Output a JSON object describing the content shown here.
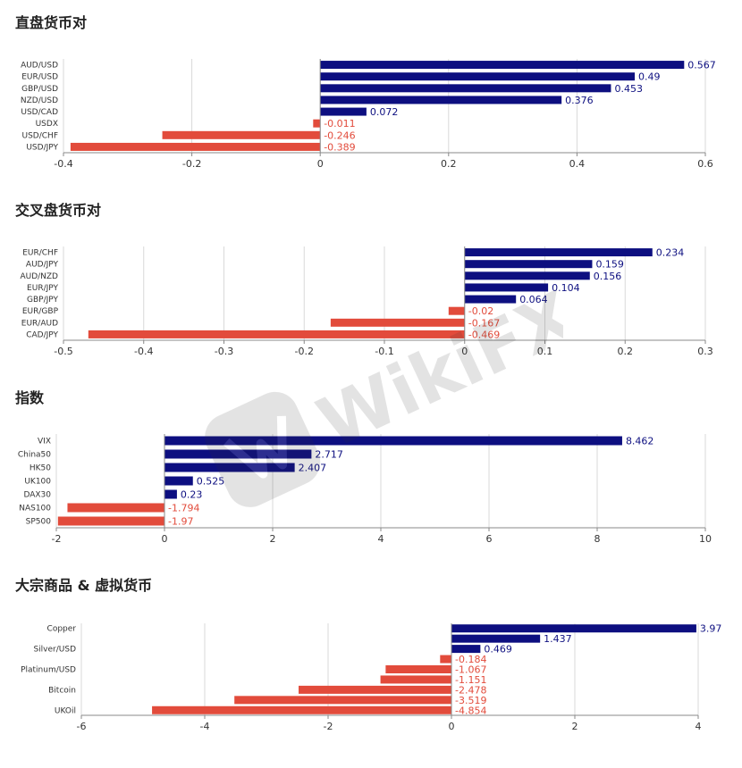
{
  "colors": {
    "positive": "#0d0f80",
    "negative": "#e24b3b",
    "grid": "#d9d9d9",
    "axis": "#888888"
  },
  "watermark": {
    "text": "WikiFX",
    "icon": "wikifx-logo-icon"
  },
  "chart_data": [
    {
      "type": "bar",
      "orientation": "horizontal",
      "title": "直盘货币对",
      "categories": [
        "AUD/USD",
        "EUR/USD",
        "GBP/USD",
        "NZD/USD",
        "USD/CAD",
        "USDX",
        "USD/CHF",
        "USD/JPY"
      ],
      "values": [
        0.567,
        0.49,
        0.453,
        0.376,
        0.072,
        -0.011,
        -0.246,
        -0.389
      ],
      "value_labels": [
        "0.567",
        "0.49",
        "0.453",
        "0.376",
        "0.072",
        "-0.011",
        "-0.246",
        "-0.389"
      ],
      "xlim": [
        -0.4,
        0.6
      ],
      "xticks": [
        -0.4,
        -0.2,
        0,
        0.2,
        0.4,
        0.6
      ],
      "xtick_labels": [
        "-0.4",
        "-0.2",
        "0",
        "0.2",
        "0.4",
        "0.6"
      ],
      "grid": true
    },
    {
      "type": "bar",
      "orientation": "horizontal",
      "title": "交叉盘货币对",
      "categories": [
        "EUR/CHF",
        "AUD/JPY",
        "AUD/NZD",
        "EUR/JPY",
        "GBP/JPY",
        "EUR/GBP",
        "EUR/AUD",
        "CAD/JPY"
      ],
      "values": [
        0.234,
        0.159,
        0.156,
        0.104,
        0.064,
        -0.02,
        -0.167,
        -0.469
      ],
      "value_labels": [
        "0.234",
        "0.159",
        "0.156",
        "0.104",
        "0.064",
        "-0.02",
        "-0.167",
        "-0.469"
      ],
      "xlim": [
        -0.5,
        0.3
      ],
      "xticks": [
        -0.5,
        -0.4,
        -0.3,
        -0.2,
        -0.1,
        0,
        0.1,
        0.2,
        0.3
      ],
      "xtick_labels": [
        "-0.5",
        "-0.4",
        "-0.3",
        "-0.2",
        "-0.1",
        "0",
        "0.1",
        "0.2",
        "0.3"
      ],
      "grid": true
    },
    {
      "type": "bar",
      "orientation": "horizontal",
      "title": "指数",
      "categories": [
        "VIX",
        "China50",
        "HK50",
        "UK100",
        "DAX30",
        "NAS100",
        "SP500"
      ],
      "values": [
        8.462,
        2.717,
        2.407,
        0.525,
        0.23,
        -1.794,
        -1.97
      ],
      "value_labels": [
        "8.462",
        "2.717",
        "2.407",
        "0.525",
        "0.23",
        "-1.794",
        "-1.97"
      ],
      "xlim": [
        -2,
        10
      ],
      "xticks": [
        -2,
        0,
        2,
        4,
        6,
        8,
        10
      ],
      "xtick_labels": [
        "-2",
        "0",
        "2",
        "4",
        "6",
        "8",
        "10"
      ],
      "grid": true
    },
    {
      "type": "bar",
      "orientation": "horizontal",
      "title": "大宗商品 & 虚拟货币",
      "categories": [
        "Copper",
        "",
        "Silver/USD",
        "",
        "Platinum/USD",
        "",
        "Bitcoin",
        "",
        "UKOil"
      ],
      "values": [
        3.97,
        1.437,
        0.469,
        -0.184,
        -1.067,
        -1.151,
        -2.478,
        -3.519,
        -4.854
      ],
      "value_labels": [
        "3.97",
        "1.437",
        "0.469",
        "-0.184",
        "-1.067",
        "-1.151",
        "-2.478",
        "-3.519",
        "-4.854"
      ],
      "xlim": [
        -6,
        4
      ],
      "xticks": [
        -6,
        -4,
        -2,
        0,
        2,
        4
      ],
      "xtick_labels": [
        "-6",
        "-4",
        "-2",
        "0",
        "2",
        "4"
      ],
      "grid": true
    }
  ]
}
